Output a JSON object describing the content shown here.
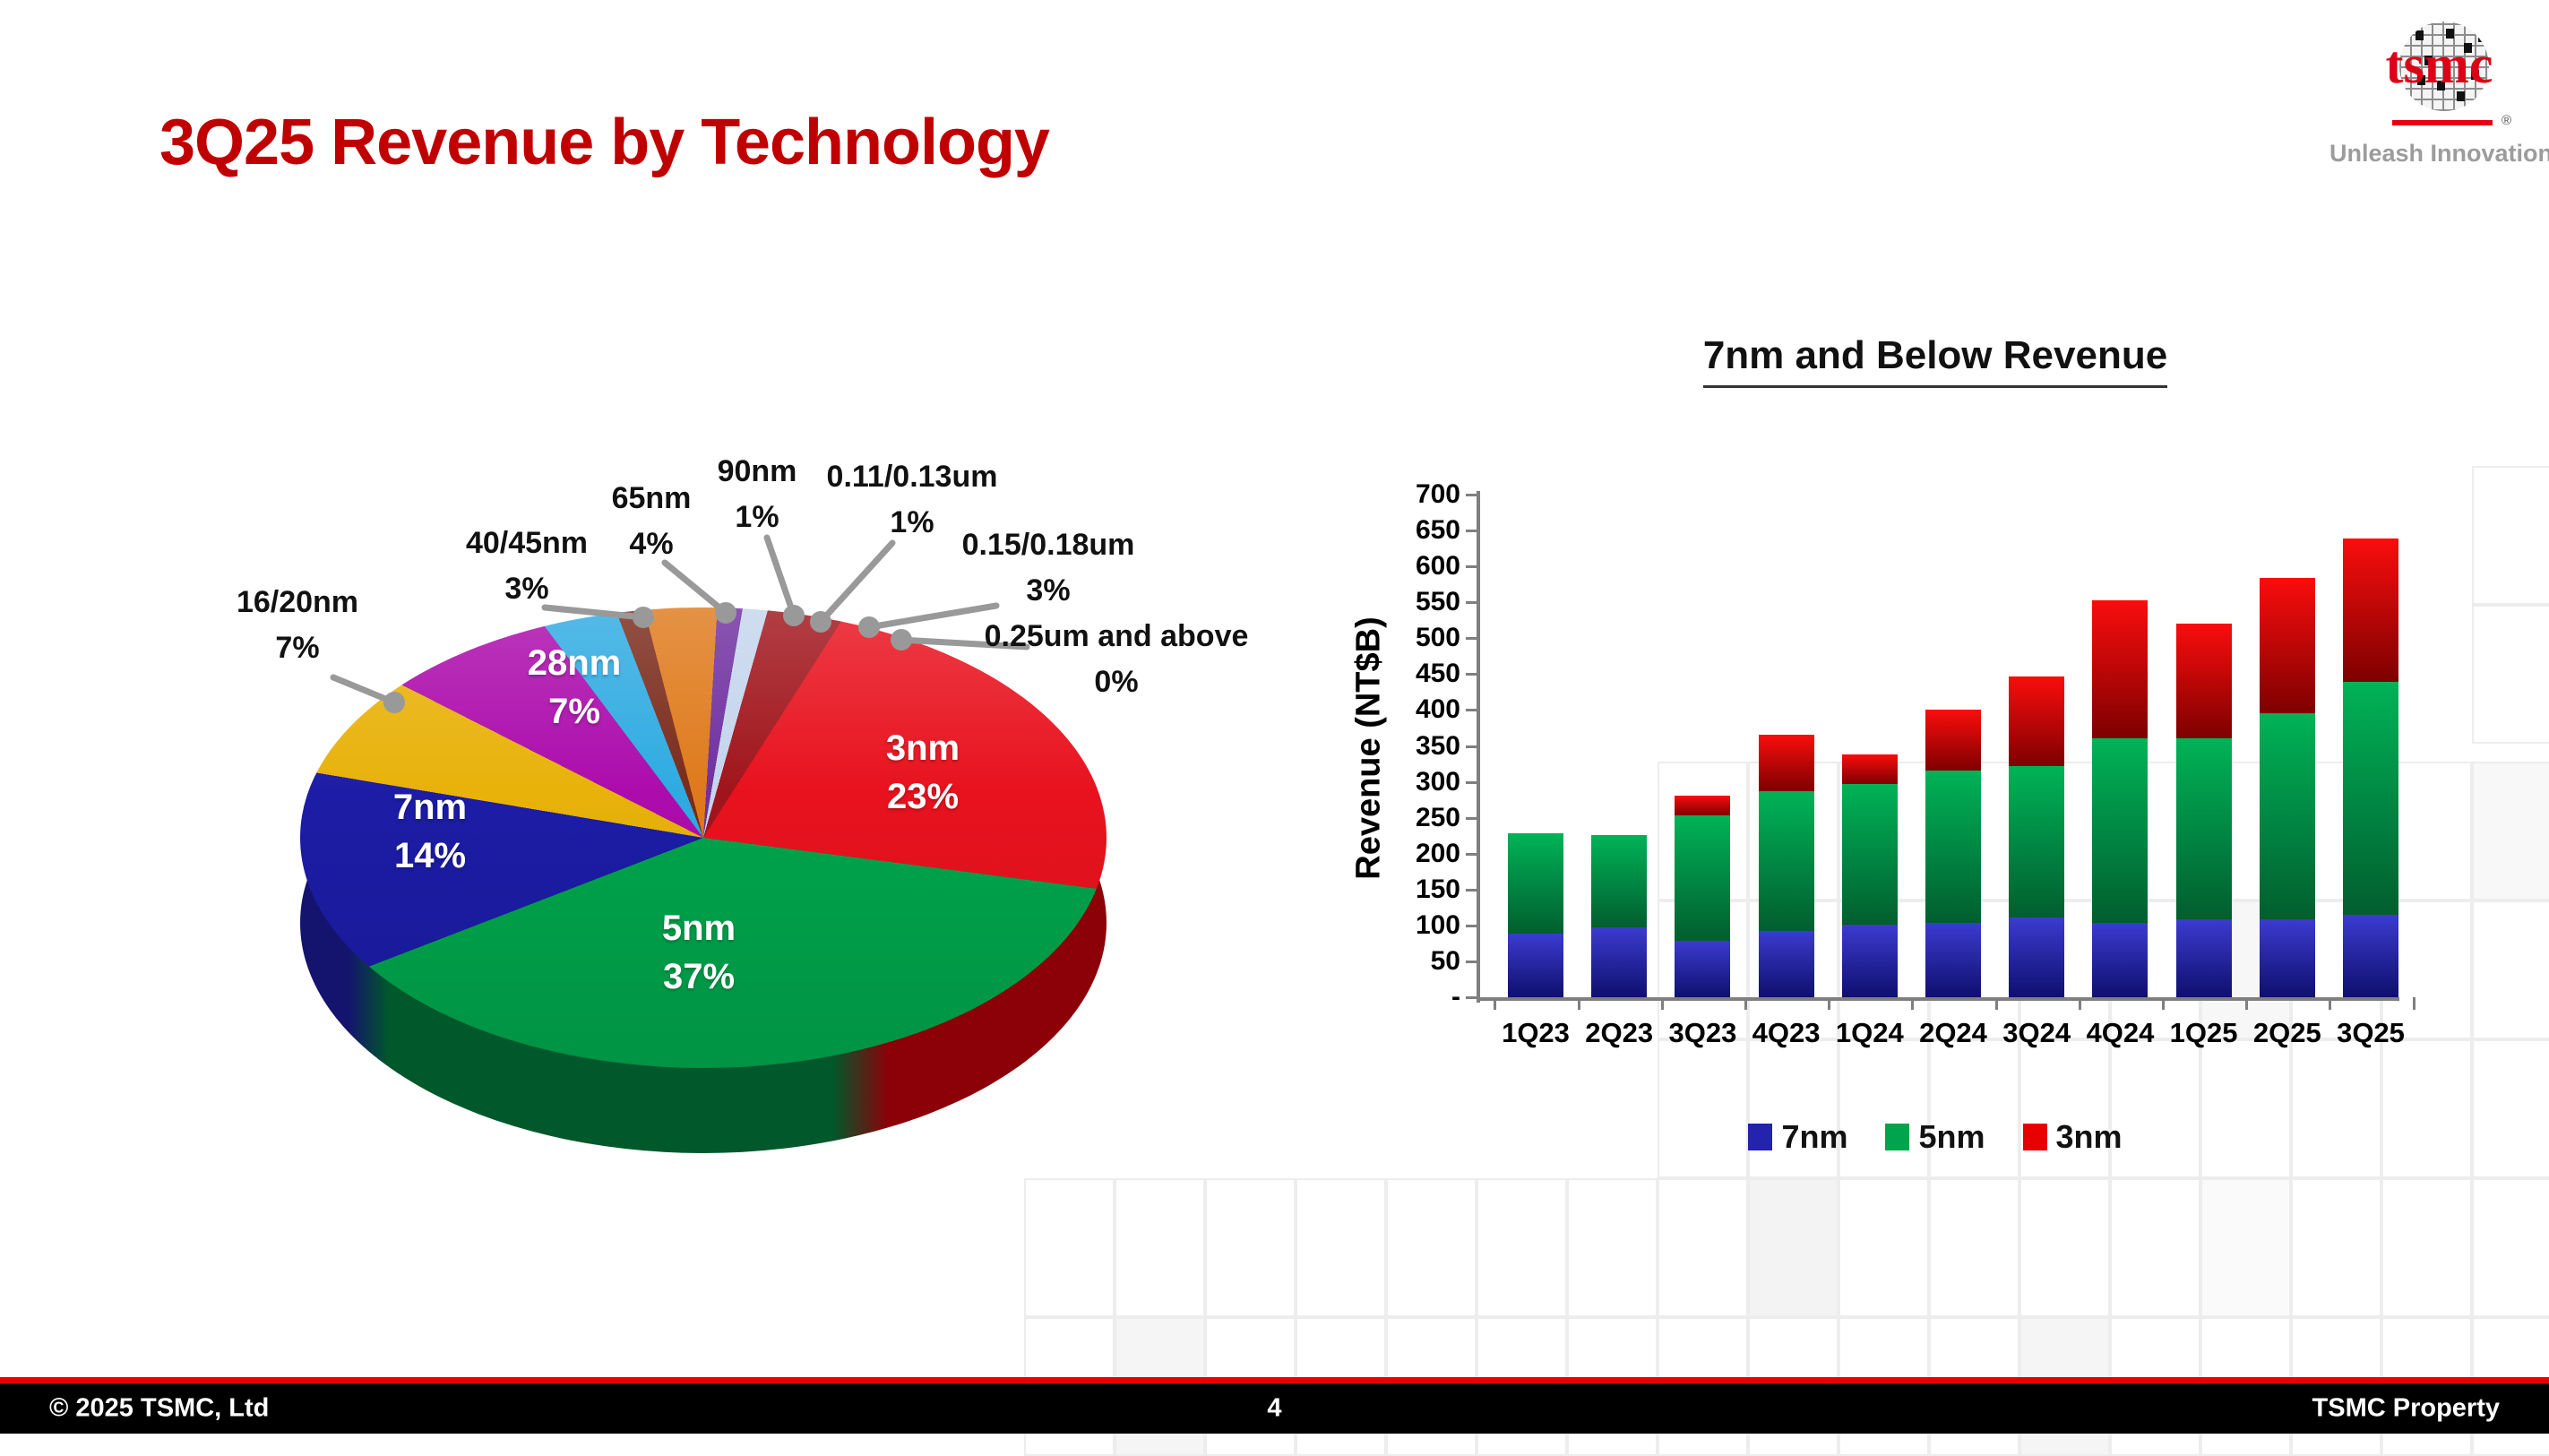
{
  "slide": {
    "title": "3Q25 Revenue by Technology",
    "title_color": "#C00000",
    "logo": {
      "wordmark": "tsmc",
      "registered_mark": "®",
      "tagline": "Unleash Innovation"
    },
    "footer": {
      "left": "© 2025 TSMC, Ltd",
      "page": "4",
      "right": "TSMC Property",
      "bar_color": "#000000",
      "line_color": "#E80000"
    }
  },
  "chart_data": [
    {
      "type": "pie",
      "name": "revenue-by-technology-pie",
      "unit": "%",
      "start_angle_deg": 20,
      "slices": [
        {
          "label": "3nm",
          "value": 23,
          "color": "#E8121E",
          "label_placement": "inner"
        },
        {
          "label": "5nm",
          "value": 37,
          "color": "#00A44C",
          "label_placement": "inner"
        },
        {
          "label": "7nm",
          "value": 14,
          "color": "#1C1CA6",
          "label_placement": "inner"
        },
        {
          "label": "16/20nm",
          "value": 7,
          "color": "#E8B20A",
          "label_placement": "callout"
        },
        {
          "label": "28nm",
          "value": 7,
          "color": "#AC0CAC",
          "label_placement": "inner"
        },
        {
          "label": "40/45nm",
          "value": 3,
          "color": "#2FABE2",
          "label_placement": "callout"
        },
        {
          "label": "65nm",
          "value": 4,
          "color": "#DF7A1C",
          "label_placement": "callout",
          "side_shade_color": "#7A2B1B",
          "side_shade_deg": 4
        },
        {
          "label": "90nm",
          "value": 1,
          "color": "#7030A0",
          "label_placement": "callout"
        },
        {
          "label": "0.11/0.13um",
          "value": 1,
          "color": "#C4D5EC",
          "label_placement": "callout"
        },
        {
          "label": "0.15/0.18um",
          "value": 3,
          "color": "#A0151B",
          "label_placement": "callout"
        },
        {
          "label": "0.25um and above",
          "value": 0,
          "color": "#8B0000",
          "label_placement": "callout"
        }
      ],
      "depth_colors": {
        "left": "#14146E",
        "center": "#00582B",
        "right": "#8C0008"
      }
    },
    {
      "type": "bar",
      "name": "7nm-and-below-revenue-bars",
      "title": "7nm and Below Revenue",
      "ylabel": "Revenue (NT$B)",
      "stacked": true,
      "ylim": [
        0,
        700
      ],
      "ytick_step": 50,
      "zero_tick_label": "-",
      "grid": false,
      "legend_position": "bottom",
      "categories": [
        "1Q23",
        "2Q23",
        "3Q23",
        "4Q23",
        "1Q24",
        "2Q24",
        "3Q24",
        "4Q24",
        "1Q25",
        "2Q25",
        "3Q25"
      ],
      "series": [
        {
          "name": "7nm",
          "color": "#2323AE",
          "color_top": "#3B3BD0",
          "color_bottom": "#0F0F6E",
          "values": [
            88,
            97,
            79,
            92,
            101,
            104,
            111,
            104,
            108,
            108,
            115
          ]
        },
        {
          "name": "5nm",
          "color": "#00A44C",
          "color_top": "#00B357",
          "color_bottom": "#015E2F",
          "values": [
            140,
            129,
            174,
            195,
            196,
            212,
            211,
            256,
            253,
            288,
            324
          ]
        },
        {
          "name": "3nm",
          "color": "#E60000",
          "color_top": "#FA0D0D",
          "color_bottom": "#7E0000",
          "values": [
            0,
            0,
            28,
            78,
            41,
            84,
            125,
            193,
            159,
            188,
            200
          ]
        }
      ]
    }
  ]
}
